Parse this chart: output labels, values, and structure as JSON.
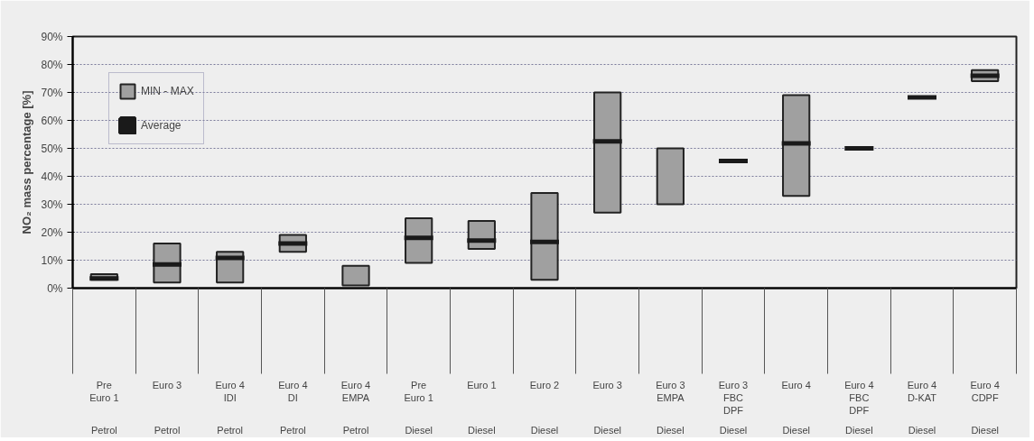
{
  "chart_data": {
    "type": "bar",
    "ylabel": "NO₂ mass percentage [%]",
    "categories": [
      "Pre\nEuro 1\nPetrol",
      "Euro 3\nPetrol",
      "Euro 4\nIDI\nPetrol",
      "Euro 4\nDI\nPetrol",
      "Euro 4\nEMPA\nPetrol",
      "Pre\nEuro 1\nDiesel",
      "Euro 1\nDiesel",
      "Euro 2\nDiesel",
      "Euro 3\nDiesel",
      "Euro 3\nEMPA\nDiesel",
      "Euro 3\nFBC\nDPF\nDiesel",
      "Euro 4\nDiesel",
      "Euro 4\nFBC\nDPF\nDiesel",
      "Euro 4\nD-KAT\nDiesel",
      "Euro 4\nCDPF\nDiesel"
    ],
    "series": [
      {
        "name": "MIN - MAX",
        "type": "bar",
        "color": "#a0a0a0",
        "base": [
          3,
          2,
          2,
          13,
          1,
          9,
          14,
          3,
          27,
          30,
          null,
          33,
          null,
          null,
          74
        ],
        "values": [
          2,
          14,
          11,
          6,
          7,
          16,
          10,
          31,
          43,
          20,
          null,
          36,
          null,
          null,
          4
        ]
      },
      {
        "name": "Average",
        "type": "bar",
        "color": "#1a1a1a",
        "base": [
          3.5,
          8.5,
          10.8,
          16,
          null,
          18,
          17,
          16.5,
          52.5,
          null,
          45.5,
          51.8,
          50,
          68.2,
          76
        ],
        "values": [
          0,
          0,
          0,
          0,
          null,
          0,
          0,
          0,
          0,
          null,
          0,
          0,
          0,
          0,
          0
        ]
      }
    ],
    "ylim": [
      0,
      90
    ],
    "yticks": [
      {
        "value": 0,
        "label": "0%"
      },
      {
        "value": 10,
        "label": "10%"
      },
      {
        "value": 20,
        "label": "20%"
      },
      {
        "value": 30,
        "label": "30%"
      },
      {
        "value": 40,
        "label": "40%"
      },
      {
        "value": 50,
        "label": "50%"
      },
      {
        "value": 60,
        "label": "60%"
      },
      {
        "value": 70,
        "label": "70%"
      },
      {
        "value": 80,
        "label": "80%"
      },
      {
        "value": 90,
        "label": "90%"
      }
    ],
    "grid": "y",
    "legend": "top left"
  }
}
